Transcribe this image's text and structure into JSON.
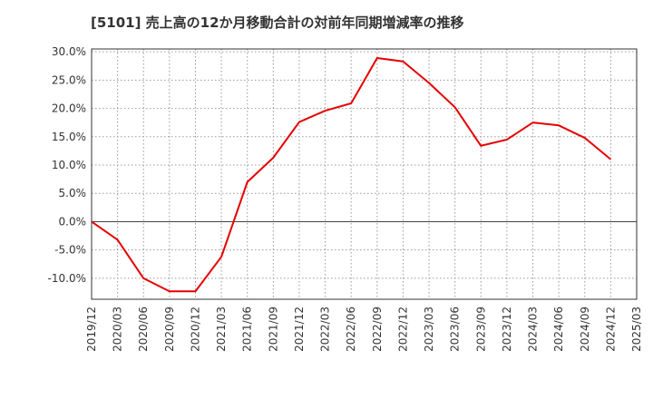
{
  "chart_data": {
    "type": "line",
    "title": "[5101]  売上高の12か月移動合計の対前年同期増減率の推移",
    "xlabel": "",
    "ylabel": "",
    "x_tick_labels": [
      "2019/12",
      "2020/03",
      "2020/06",
      "2020/09",
      "2020/12",
      "2021/03",
      "2021/06",
      "2021/09",
      "2021/12",
      "2022/03",
      "2022/06",
      "2022/09",
      "2022/12",
      "2023/03",
      "2023/06",
      "2023/09",
      "2023/12",
      "2024/03",
      "2024/06",
      "2024/09",
      "2024/12",
      "2025/03"
    ],
    "y_tick_labels": [
      "30.0%",
      "25.0%",
      "20.0%",
      "15.0%",
      "10.0%",
      "5.0%",
      "0.0%",
      "-5.0%",
      "-10.0%"
    ],
    "y_ticks": [
      30,
      25,
      20,
      15,
      10,
      5,
      0,
      -5,
      -10
    ],
    "ylim": [
      -13.7,
      30.5
    ],
    "grid": true,
    "series": [
      {
        "name": "対前年同期増減率",
        "color": "#e60000",
        "x_index": [
          0,
          1,
          2,
          3,
          4,
          5,
          6,
          7,
          8,
          9,
          10,
          11,
          12,
          13,
          14,
          15,
          16,
          17,
          18,
          19,
          20
        ],
        "values": [
          0.0,
          -3.2,
          -10.0,
          -12.3,
          -12.3,
          -6.2,
          7.0,
          11.3,
          17.6,
          19.6,
          20.9,
          28.9,
          28.3,
          24.5,
          20.2,
          13.4,
          14.5,
          17.5,
          17.0,
          14.8,
          11.0
        ]
      }
    ],
    "colors": {
      "line": "#e60000",
      "grid": "#999999",
      "zero_line": "#444444",
      "axis": "#333333"
    }
  }
}
